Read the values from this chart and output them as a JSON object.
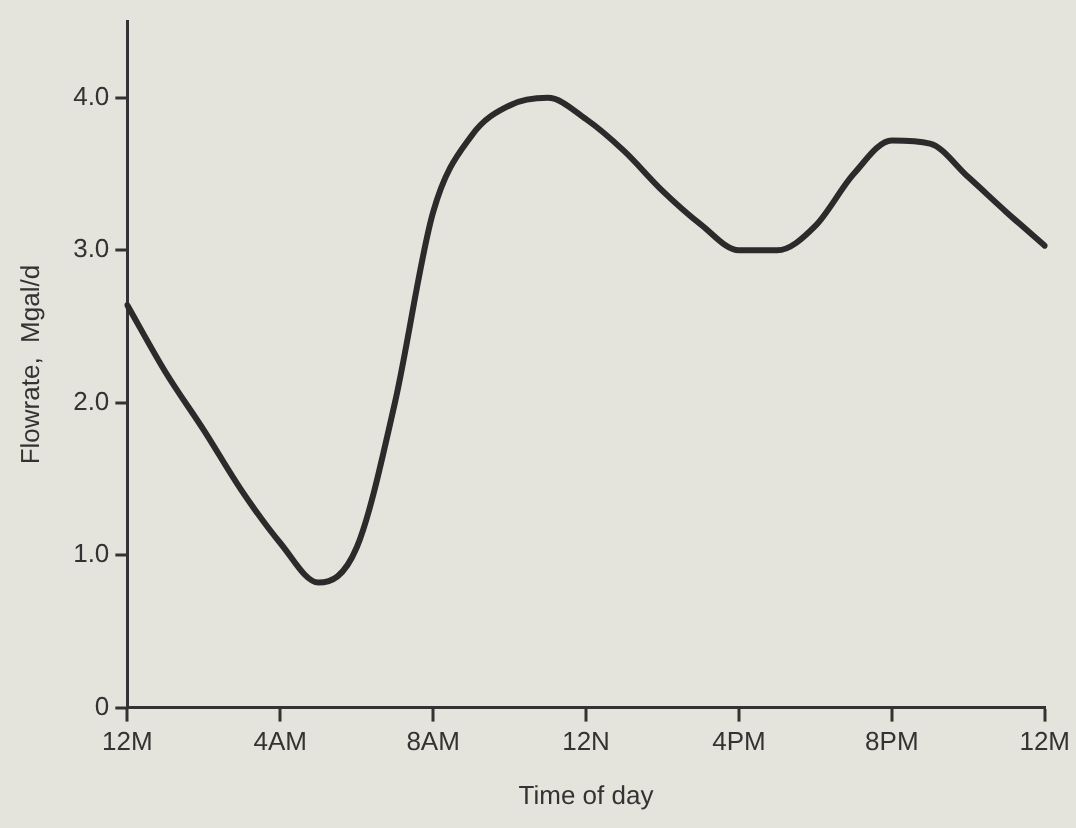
{
  "chart_data": {
    "type": "line",
    "xlabel": "Time of day",
    "ylabel": "Flowrate,  Mgal/d",
    "categories": [
      "12M",
      null,
      null,
      null,
      "4AM",
      null,
      null,
      null,
      "8AM",
      null,
      null,
      null,
      "12N",
      null,
      null,
      null,
      "4PM",
      null,
      null,
      null,
      "8PM",
      null,
      null,
      null,
      "12M"
    ],
    "series": [
      {
        "color": "#2b2b2b",
        "values": [
          2.64,
          2.2,
          1.82,
          1.42,
          1.08,
          0.82,
          1.05,
          2.0,
          3.25,
          3.75,
          3.95,
          4.0,
          3.86,
          3.65,
          3.39,
          3.17,
          3.0,
          3.0,
          3.16,
          3.5,
          3.72,
          3.7,
          3.48,
          3.25,
          3.03
        ]
      }
    ],
    "ylim": [
      0,
      4.5
    ],
    "yticks": [
      {
        "value": 0,
        "label": "0"
      },
      {
        "value": 1,
        "label": "1.0"
      },
      {
        "value": 2,
        "label": "2.0"
      },
      {
        "value": 3,
        "label": "3.0"
      },
      {
        "value": 4,
        "label": "4.0"
      }
    ],
    "grid": false,
    "legend": false,
    "marker": "none",
    "line_style": "solid"
  }
}
